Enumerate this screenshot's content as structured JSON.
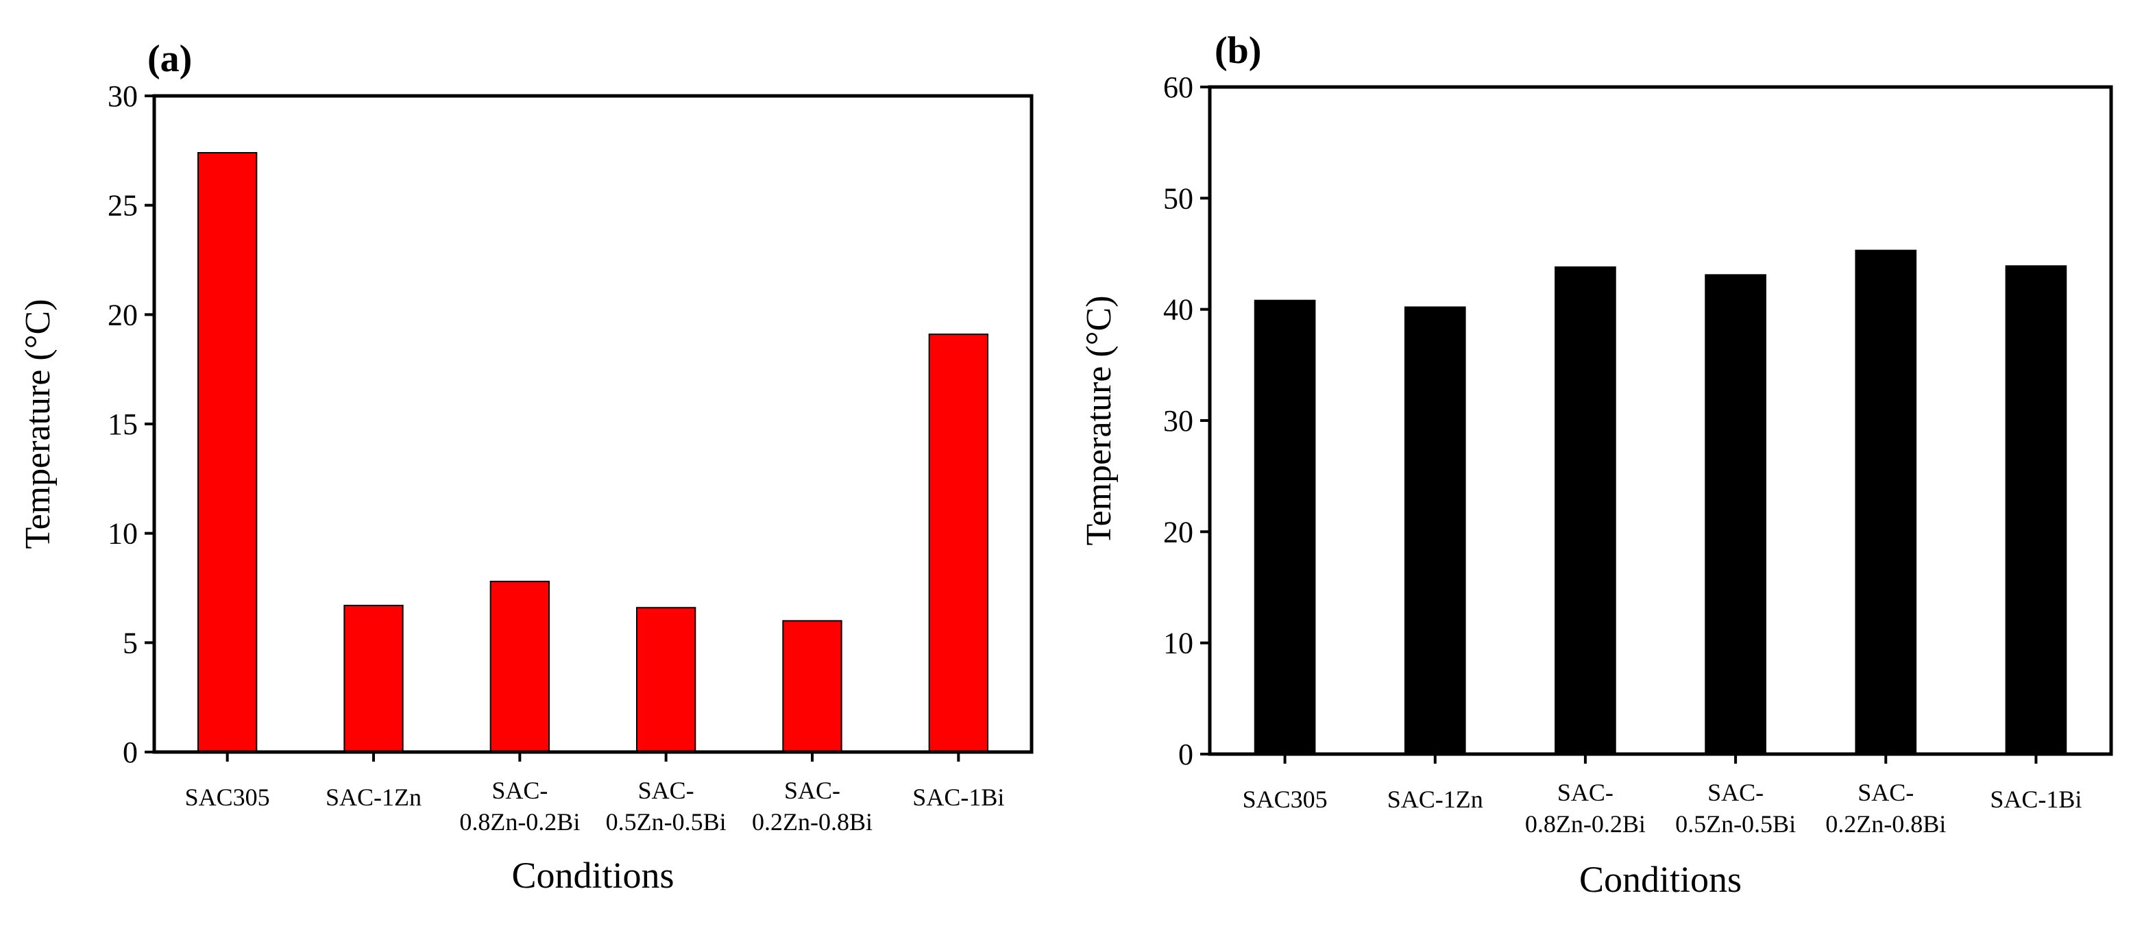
{
  "chart_data": [
    {
      "panel_label": "(a)",
      "type": "bar",
      "title": "",
      "xlabel": "Conditions",
      "ylabel": "Temperature (°C)",
      "ylim": [
        0,
        30
      ],
      "yticks": [
        0,
        5,
        10,
        15,
        20,
        25,
        30
      ],
      "bar_color": "#ff0000",
      "categories": [
        [
          "SAC305"
        ],
        [
          "SAC-1Zn"
        ],
        [
          "SAC-",
          "0.8Zn-0.2Bi"
        ],
        [
          "SAC-",
          "0.5Zn-0.5Bi"
        ],
        [
          "SAC-",
          "0.2Zn-0.8Bi"
        ],
        [
          "SAC-1Bi"
        ]
      ],
      "values": [
        27.4,
        6.7,
        7.8,
        6.6,
        6.0,
        19.1
      ]
    },
    {
      "panel_label": "(b)",
      "type": "bar",
      "title": "",
      "xlabel": "Conditions",
      "ylabel": "Temperature (°C)",
      "ylim": [
        0,
        60
      ],
      "yticks": [
        0,
        10,
        20,
        30,
        40,
        50,
        60
      ],
      "bar_color": "#000000",
      "categories": [
        [
          "SAC305"
        ],
        [
          "SAC-1Zn"
        ],
        [
          "SAC-",
          "0.8Zn-0.2Bi"
        ],
        [
          "SAC-",
          "0.5Zn-0.5Bi"
        ],
        [
          "SAC-",
          "0.2Zn-0.8Bi"
        ],
        [
          "SAC-1Bi"
        ]
      ],
      "values": [
        40.8,
        40.2,
        43.8,
        43.1,
        45.3,
        43.9
      ]
    }
  ]
}
